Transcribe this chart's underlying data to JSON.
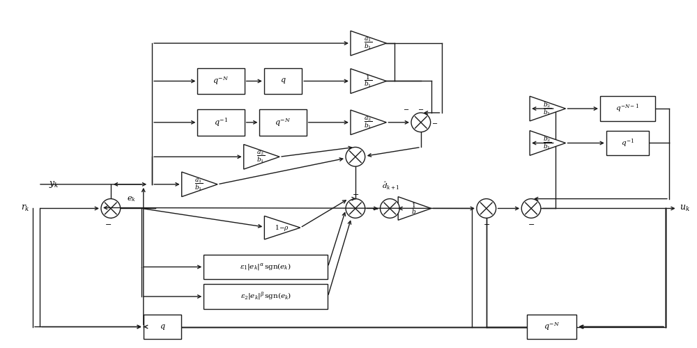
{
  "bg_color": "#ffffff",
  "line_color": "#1a1a1a",
  "fig_width": 10.0,
  "fig_height": 5.0,
  "lw": 1.0
}
